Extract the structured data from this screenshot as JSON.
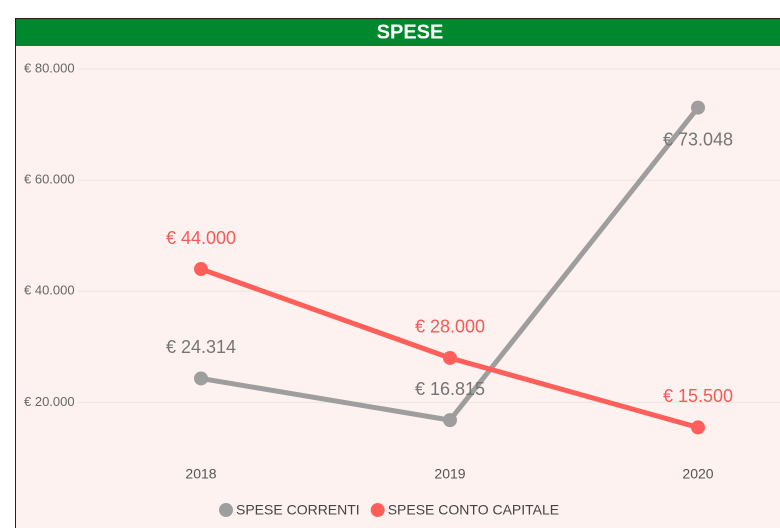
{
  "chart_data": {
    "type": "line",
    "title": "SPESE",
    "categories": [
      "2018",
      "2019",
      "2020"
    ],
    "series": [
      {
        "name": "SPESE CORRENTI",
        "color": "#9e9e9e",
        "label_color": "#757575",
        "values": [
          24314,
          16815,
          73048
        ],
        "value_labels": [
          "€ 24.314",
          "€ 16.815",
          "€ 73.048"
        ]
      },
      {
        "name": "SPESE CONTO CAPITALE",
        "color": "#ff5f5b",
        "label_color": "#f45b57",
        "values": [
          44000,
          28000,
          15500
        ],
        "value_labels": [
          "€ 44.000",
          "€ 28.000",
          "€ 15.500"
        ]
      }
    ],
    "ylim": [
      10000,
      80000
    ],
    "yticks": [
      {
        "value": 20000,
        "label": "€ 20.000"
      },
      {
        "value": 40000,
        "label": "€ 40.000"
      },
      {
        "value": 60000,
        "label": "€ 60.000"
      },
      {
        "value": 80000,
        "label": "€ 80.000"
      }
    ],
    "grid": true,
    "legend": "bottom"
  }
}
